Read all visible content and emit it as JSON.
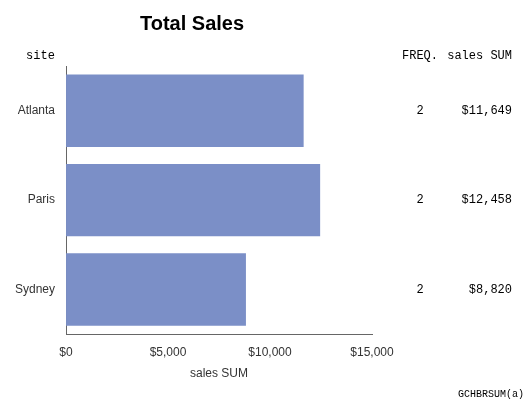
{
  "chart_data": {
    "type": "bar",
    "orientation": "horizontal",
    "title": "Total Sales",
    "categories": [
      "Atlanta",
      "Paris",
      "Sydney"
    ],
    "values": [
      11649,
      12458,
      8820
    ],
    "value_labels": [
      "$11,649",
      "$12,458",
      "$8,820"
    ],
    "freq": [
      2,
      2,
      2
    ],
    "table_headers": [
      "FREQ.",
      "sales SUM"
    ],
    "color": "#7b8fc7",
    "xlabel": "sales SUM",
    "ylabel": "site",
    "xlim": [
      0,
      15000
    ],
    "xticks": [
      {
        "value": 0,
        "label": "$0"
      },
      {
        "value": 5000,
        "label": "$5,000"
      },
      {
        "value": 10000,
        "label": "$10,000"
      },
      {
        "value": 15000,
        "label": "$15,000"
      }
    ],
    "grid": false,
    "footnote": "GCHBRSUM(a)"
  }
}
